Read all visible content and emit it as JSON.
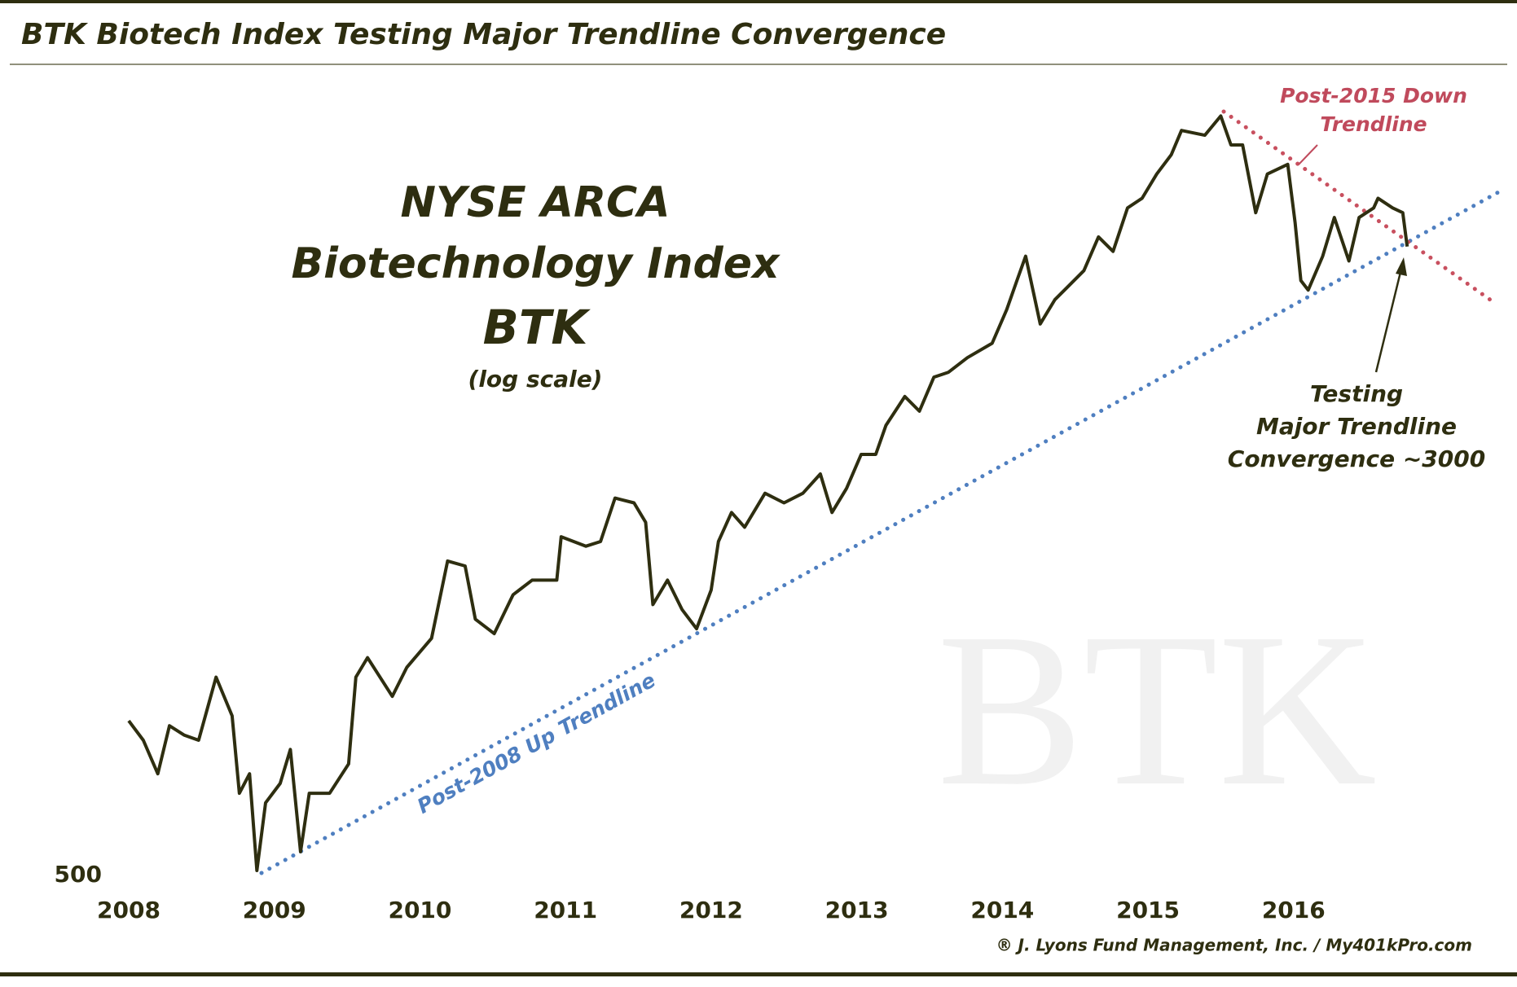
{
  "chart_data": {
    "type": "line",
    "title": "BTK Biotech Index Testing Major Trendline Convergence",
    "subtitle_lines": [
      "NYSE ARCA",
      "Biotechnology Index",
      "BTK"
    ],
    "scale_note": "(log scale)",
    "watermark": "BTK",
    "annotations": {
      "up_trendline": "Post-2008 Up Trendline",
      "down_trendline": [
        "Post-2015 Down",
        "Trendline"
      ],
      "testing": [
        "Testing",
        "Major Trendline",
        "Convergence ~3000"
      ]
    },
    "credit": "® J. Lyons Fund Management, Inc. / My401kPro.com",
    "log_scale": true,
    "color": "#2e2e10",
    "xlim": [
      2008,
      2017.4
    ],
    "xticks": [
      2008,
      2009,
      2010,
      2011,
      2012,
      2013,
      2014,
      2015,
      2016
    ],
    "ylim": [
      500,
      5000
    ],
    "yticks": [
      500
    ],
    "x": [
      2008.0,
      2008.1,
      2008.2,
      2008.28,
      2008.38,
      2008.48,
      2008.6,
      2008.71,
      2008.76,
      2008.83,
      2008.88,
      2008.94,
      2009.04,
      2009.11,
      2009.18,
      2009.24,
      2009.38,
      2009.51,
      2009.56,
      2009.64,
      2009.81,
      2009.91,
      2010.08,
      2010.19,
      2010.31,
      2010.38,
      2010.51,
      2010.64,
      2010.77,
      2010.94,
      2010.97,
      2011.14,
      2011.24,
      2011.34,
      2011.47,
      2011.55,
      2011.6,
      2011.7,
      2011.8,
      2011.9,
      2012.0,
      2012.05,
      2012.14,
      2012.23,
      2012.37,
      2012.5,
      2012.63,
      2012.75,
      2012.83,
      2012.93,
      2013.03,
      2013.13,
      2013.2,
      2013.33,
      2013.43,
      2013.53,
      2013.63,
      2013.76,
      2013.93,
      2014.03,
      2014.1,
      2014.16,
      2014.26,
      2014.36,
      2014.46,
      2014.56,
      2014.66,
      2014.76,
      2014.86,
      2014.96,
      2015.06,
      2015.16,
      2015.23,
      2015.39,
      2015.5,
      2015.57,
      2015.65,
      2015.74,
      2015.82,
      2015.96,
      2016.01,
      2016.05,
      2016.1,
      2016.2,
      2016.28,
      2016.38,
      2016.45,
      2016.55,
      2016.58,
      2016.68,
      2016.75,
      2016.78
    ],
    "values": [
      777,
      735,
      668,
      766,
      746,
      735,
      880,
      788,
      632,
      668,
      507,
      615,
      650,
      716,
      535,
      632,
      632,
      687,
      880,
      930,
      833,
      905,
      983,
      1225,
      1208,
      1038,
      996,
      1113,
      1160,
      1160,
      1313,
      1278,
      1295,
      1466,
      1446,
      1368,
      1082,
      1160,
      1067,
      1010,
      1128,
      1295,
      1407,
      1349,
      1486,
      1446,
      1486,
      1570,
      1407,
      1507,
      1660,
      1660,
      1803,
      1958,
      1878,
      2069,
      2098,
      2187,
      2279,
      2509,
      2725,
      2921,
      2408,
      2580,
      2689,
      2803,
      3086,
      2961,
      3352,
      3446,
      3692,
      3901,
      4180,
      4123,
      4356,
      4011,
      4011,
      3306,
      3692,
      3795,
      3216,
      2725,
      2652,
      2921,
      3261,
      2881,
      3261,
      3352,
      3446,
      3352,
      3306,
      3002
    ]
  }
}
